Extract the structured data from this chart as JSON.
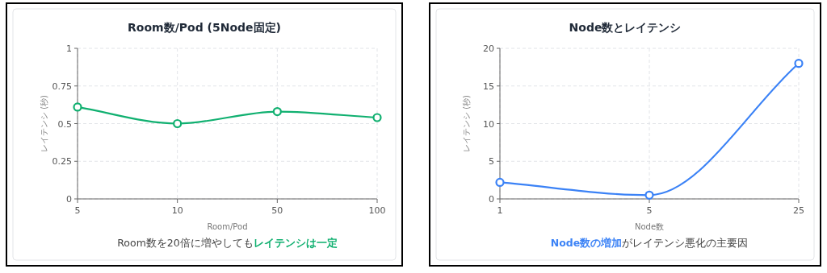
{
  "chart_data": [
    {
      "type": "line",
      "title": "Room数/Pod (5Node固定)",
      "xlabel": "Room/Pod",
      "ylabel": "レイテンシ (秒)",
      "categories": [
        "5",
        "10",
        "50",
        "100"
      ],
      "series": [
        {
          "color": "#10b070",
          "values": [
            0.61,
            0.5,
            0.58,
            0.54
          ]
        }
      ],
      "ylim": [
        0,
        1
      ],
      "yticks": [
        0,
        0.25,
        0.5,
        0.75,
        1
      ],
      "grid": true,
      "marker": "circle",
      "line_style": "solid",
      "annotations": [
        "Room数を20倍に増やしても**レイテンシは一定**"
      ]
    },
    {
      "type": "line",
      "title": "Node数とレイテンシ",
      "xlabel": "Node数",
      "ylabel": "レイテンシ (秒)",
      "categories": [
        "1",
        "5",
        "25"
      ],
      "series": [
        {
          "color": "#3b82f6",
          "values": [
            2.2,
            0.5,
            18
          ]
        }
      ],
      "ylim": [
        0,
        20
      ],
      "yticks": [
        0,
        5,
        10,
        15,
        20
      ],
      "grid": true,
      "marker": "circle",
      "line_style": "solid",
      "annotations": [
        "**Node数の増加**がレイテンシ悪化の主要因"
      ]
    }
  ]
}
